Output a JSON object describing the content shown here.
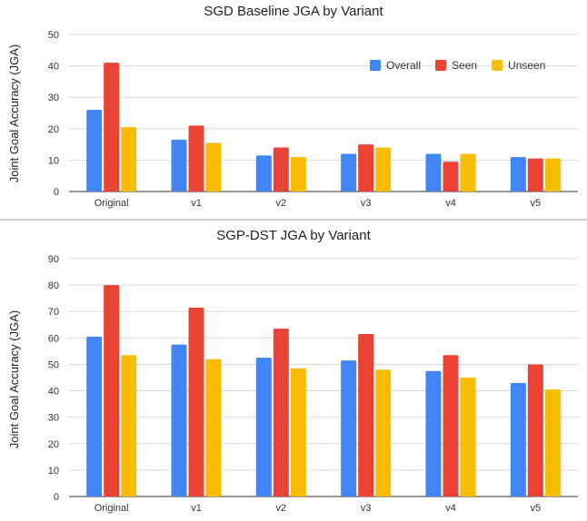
{
  "chart_data": [
    {
      "type": "bar",
      "title": "SGD Baseline JGA by Variant",
      "xlabel": "",
      "ylabel": "Joint Goal Accuracy (JGA)",
      "categories": [
        "Original",
        "v1",
        "v2",
        "v3",
        "v4",
        "v5"
      ],
      "ylim": [
        0,
        50
      ],
      "yticks": [
        0,
        10,
        20,
        30,
        40,
        50
      ],
      "grid": true,
      "legend_position": "top-right",
      "series": [
        {
          "name": "Overall",
          "color": "#4285F4",
          "values": [
            26,
            16.5,
            11.5,
            12,
            12,
            11
          ]
        },
        {
          "name": "Seen",
          "color": "#EA4335",
          "values": [
            41,
            21,
            14,
            15,
            9.5,
            10.5
          ]
        },
        {
          "name": "Unseen",
          "color": "#FBBC04",
          "values": [
            20.5,
            15.5,
            11,
            14,
            12,
            10.5
          ]
        }
      ]
    },
    {
      "type": "bar",
      "title": "SGP-DST JGA by Variant",
      "xlabel": "",
      "ylabel": "Joint Goal Accuracy (JGA)",
      "categories": [
        "Original",
        "v1",
        "v2",
        "v3",
        "v4",
        "v5"
      ],
      "ylim": [
        0,
        90
      ],
      "yticks": [
        0,
        10,
        20,
        30,
        40,
        50,
        60,
        70,
        80,
        90
      ],
      "grid": true,
      "legend_position": "none",
      "series": [
        {
          "name": "Overall",
          "color": "#4285F4",
          "values": [
            60.5,
            57.5,
            52.5,
            51.5,
            47.5,
            43
          ]
        },
        {
          "name": "Seen",
          "color": "#EA4335",
          "values": [
            80,
            71.5,
            63.5,
            61.5,
            53.5,
            50
          ]
        },
        {
          "name": "Unseen",
          "color": "#FBBC04",
          "values": [
            53.5,
            52,
            48.5,
            48,
            45,
            40.5
          ]
        }
      ]
    }
  ]
}
